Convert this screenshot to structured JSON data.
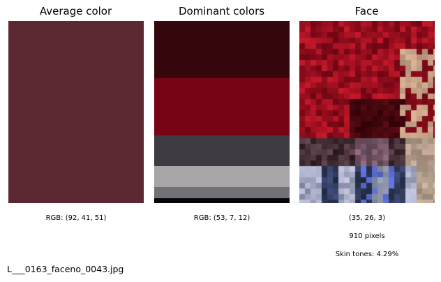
{
  "panels": {
    "average": {
      "title": "Average color",
      "color": "#5c2933",
      "caption": "RGB: (92, 41, 51)"
    },
    "dominant": {
      "title": "Dominant colors",
      "caption": "RGB: (53, 7, 12)",
      "bands": [
        {
          "name": "dominant-color-1",
          "color": "#35070c",
          "fraction": 0.315
        },
        {
          "name": "dominant-color-2",
          "color": "#760414",
          "fraction": 0.315
        },
        {
          "name": "dominant-color-3",
          "color": "#3d3b41",
          "fraction": 0.17
        },
        {
          "name": "dominant-color-4",
          "color": "#a7a5a8",
          "fraction": 0.115
        },
        {
          "name": "dominant-color-5",
          "color": "#737076",
          "fraction": 0.06
        },
        {
          "name": "dominant-color-6",
          "color": "#060606",
          "fraction": 0.025
        }
      ]
    },
    "face": {
      "title": "Face",
      "caption_rgb": "(35, 26, 3)",
      "caption_pixels": "910 pixels",
      "caption_skin": "Skin tones: 4.29%"
    }
  },
  "filename": "L___0163_faceno_0043.jpg"
}
